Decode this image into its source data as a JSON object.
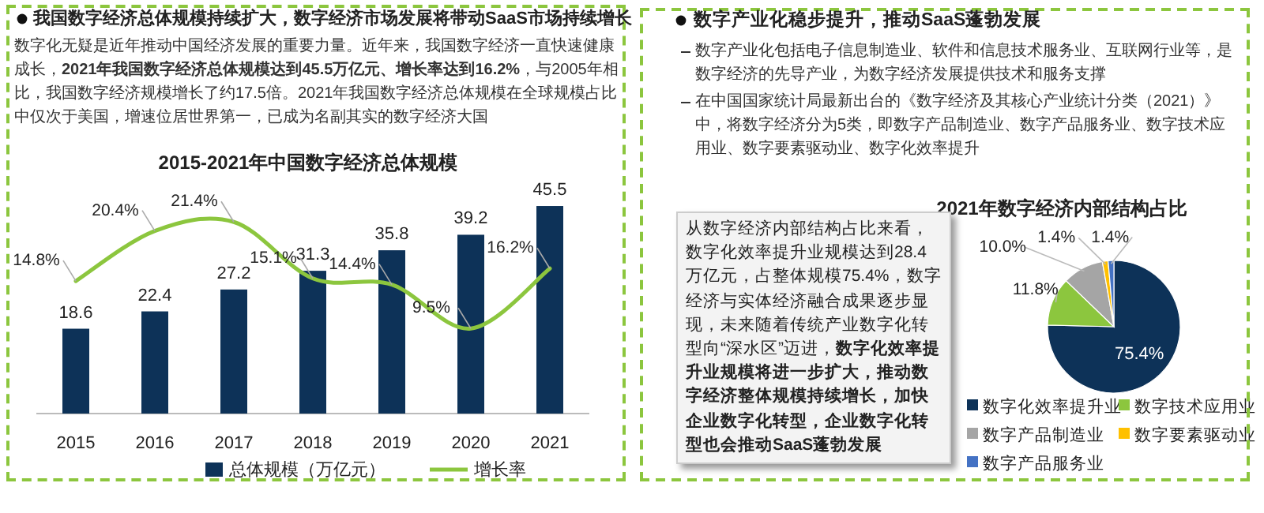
{
  "chart_data": [
    {
      "type": "bar",
      "title": "2015-2021年中国数字经济总体规模",
      "categories": [
        "2015",
        "2016",
        "2017",
        "2018",
        "2019",
        "2020",
        "2021"
      ],
      "series": [
        {
          "name": "总体规模（万亿元）",
          "type": "bar",
          "color": "#0d3258",
          "values": [
            18.6,
            22.4,
            27.2,
            31.3,
            35.8,
            39.2,
            45.5
          ]
        },
        {
          "name": "增长率",
          "type": "line",
          "axis": "y2",
          "color": "#8cc63e",
          "values": [
            14.8,
            20.4,
            21.4,
            15.1,
            14.4,
            9.5,
            16.2
          ],
          "value_labels": [
            "14.8%",
            "20.4%",
            "21.4%",
            "15.1%",
            "14.4%",
            "9.5%",
            "16.2%"
          ]
        }
      ],
      "data_labels": true,
      "legend": "bottom",
      "annotations": [
        "我国数字经济总体规模持续扩大，数字经济市场发展将带动SaaS市场持续增长",
        "数字化无疑是近年推动中国经济发展的重要力量。近年来，我国数字经济一直快速健康成长，**2021年我国数字经济总体规模达到45.5万亿元、增长率达到16.2%**，与2005年相比，我国数字经济规模增长了约17.5倍。2021年我国数字经济总体规模在全球规模占比中仅次于美国，增速位居世界第一，已成为名副其实的数字经济大国"
      ]
    },
    {
      "type": "pie",
      "title": "2021年数字经济内部结构占比",
      "categories": [
        "数字化效率提升业",
        "数字技术应用业",
        "数字产品制造业",
        "数字要素驱动业",
        "数字产品服务业"
      ],
      "values": [
        75.4,
        11.8,
        10.0,
        1.4,
        1.4
      ],
      "colors": [
        "#0d3258",
        "#8cc63e",
        "#a5a5a5",
        "#ffc000",
        "#4472c4"
      ],
      "value_labels": [
        "75.4%",
        "11.8%",
        "10.0%",
        "1.4%",
        "1.4%"
      ],
      "legend": "bottom",
      "annotations": [
        "数字产业化稳步提升，推动SaaS蓬勃发展",
        "数字产业化包括电子信息制造业、软件和信息技术服务业、互联网行业等，是数字经济的先导产业，为数字经济发展提供技术和服务支撑",
        "在中国国家统计局最新出台的《数字经济及其核心产业统计分类（2021）》中，将数字经济分为5类，即数字产品制造业、数字产品服务业、数字技术应用业、数字要素驱动业、数字化效率提升",
        "从数字经济内部结构占比来看，数字化效率提升业规模达到28.4万亿元，占整体规模75.4%，数字经济与实体经济融合成果逐步显现，未来随着传统产业数字化转型向“深水区”迈进，**数字化效率提升业规模将进一步扩大，推动数字经济整体规模持续增长，加快企业数字化转型，企业数字化转型也会推动SaaS蓬勃发展**"
      ]
    }
  ]
}
